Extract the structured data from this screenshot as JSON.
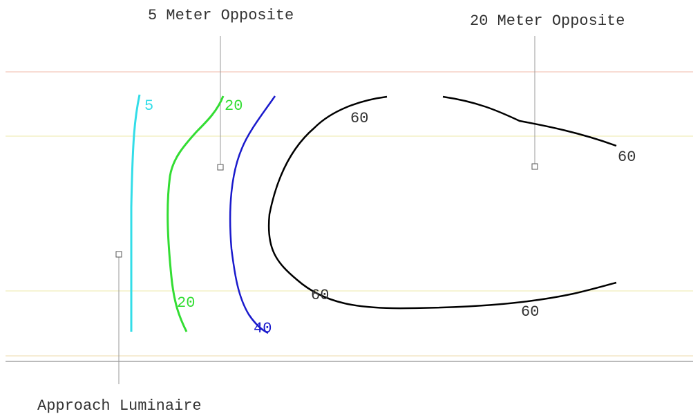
{
  "labels": {
    "opposite_5m": "5 Meter Opposite",
    "opposite_20m": "20 Meter Opposite",
    "approach": "Approach Luminaire"
  },
  "contours": [
    5,
    20,
    20,
    40,
    60,
    60,
    60,
    60
  ]
}
